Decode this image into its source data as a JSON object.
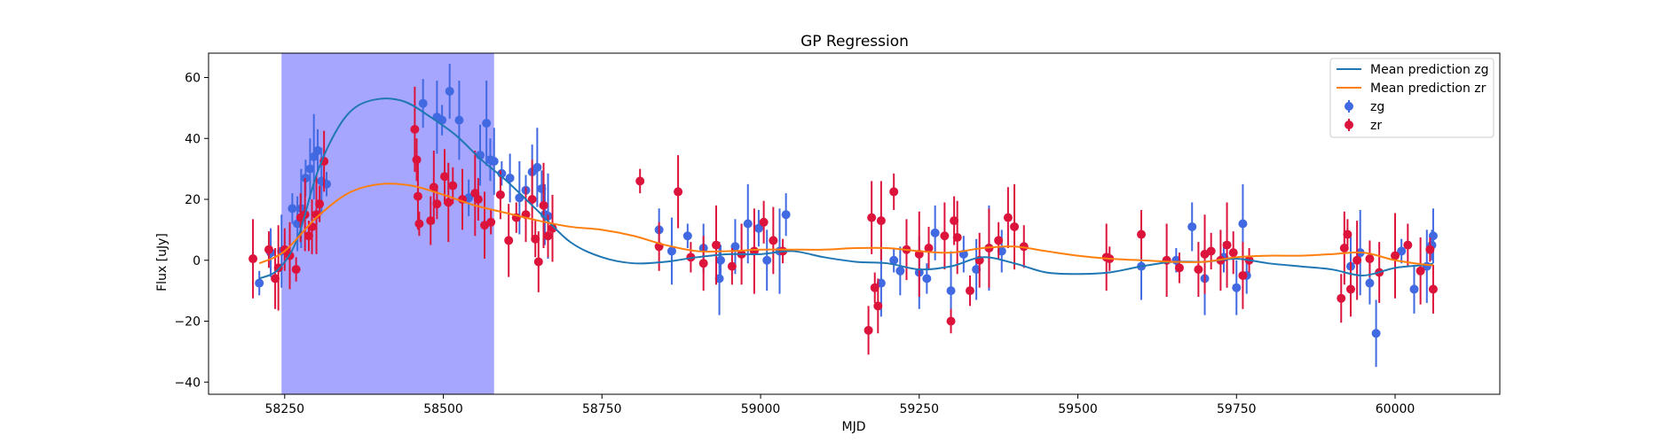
{
  "chart_data": {
    "type": "scatter",
    "title": "GP Regression",
    "xlabel": "MJD",
    "ylabel": "Flux [uJy]",
    "xlim": [
      58130,
      60165
    ],
    "ylim": [
      -44,
      68
    ],
    "xticks": [
      58250,
      58500,
      58750,
      59000,
      59250,
      59500,
      59750,
      60000
    ],
    "yticks": [
      -40,
      -20,
      0,
      20,
      40,
      60
    ],
    "grid": false,
    "legend_position": "top-right",
    "highlight_span": {
      "x_start": 58245,
      "x_end": 58580,
      "color": "#a6a6ff"
    },
    "colors": {
      "zg_line": "#1f77b4",
      "zr_line": "#ff7f0e",
      "zg_points": "#4169e1",
      "zr_points": "#dc143c"
    },
    "lines": [
      {
        "name": "Mean prediction zg",
        "color": "#1f77b4",
        "x": [
          58210,
          58240,
          58270,
          58300,
          58330,
          58360,
          58400,
          58440,
          58480,
          58520,
          58560,
          58600,
          58650,
          58700,
          58750,
          58800,
          58850,
          58900,
          58950,
          59000,
          59050,
          59100,
          59150,
          59200,
          59250,
          59300,
          59350,
          59400,
          59450,
          59500,
          59550,
          59600,
          59650,
          59700,
          59750,
          59800,
          59850,
          59900,
          59950,
          60000,
          60050,
          60060
        ],
        "y": [
          -6,
          -3,
          7,
          28,
          42,
          50,
          53,
          52,
          47,
          41,
          33,
          26,
          16,
          6,
          1,
          -1,
          -0.5,
          1,
          2,
          2,
          3,
          1,
          -0.5,
          -1,
          -3,
          -2,
          1,
          -1,
          -4,
          -4.5,
          -4,
          -2,
          -0.5,
          -0.5,
          0.5,
          -1,
          -2,
          -3,
          -5,
          -2.5,
          -1.5,
          -1
        ]
      },
      {
        "name": "Mean prediction zr",
        "color": "#ff7f0e",
        "x": [
          58210,
          58250,
          58300,
          58350,
          58400,
          58450,
          58500,
          58550,
          58600,
          58650,
          58700,
          58750,
          58800,
          58850,
          58900,
          58950,
          59000,
          59050,
          59100,
          59150,
          59200,
          59250,
          59300,
          59350,
          59400,
          59450,
          59500,
          59550,
          59600,
          59650,
          59700,
          59750,
          59800,
          59850,
          59900,
          59950,
          60000,
          60050,
          60060
        ],
        "y": [
          -1,
          3,
          14,
          22,
          25,
          24.5,
          21.5,
          18,
          15.5,
          13,
          11,
          10,
          8,
          5,
          3,
          3,
          3.5,
          3.5,
          3.5,
          4,
          4,
          3,
          2.5,
          4,
          4.5,
          3,
          1.5,
          0.5,
          0,
          -0.5,
          -0.5,
          1,
          1.5,
          1.5,
          2,
          2.5,
          0,
          -1.5,
          -1.5
        ]
      }
    ],
    "series": [
      {
        "name": "zg",
        "color": "#4169e1",
        "marker": "circle",
        "x": [
          58210,
          58228,
          58245,
          58262,
          58270,
          58276,
          58283,
          58290,
          58296,
          58302,
          58308,
          58316,
          58468,
          58490,
          58498,
          58510,
          58525,
          58540,
          58558,
          58568,
          58574,
          58580,
          58592,
          58605,
          58620,
          58630,
          58640,
          58648,
          58655,
          58660,
          58665,
          58840,
          58860,
          58885,
          58910,
          58935,
          58937,
          58960,
          58980,
          58997,
          59010,
          59030,
          59040,
          59190,
          59210,
          59220,
          59250,
          59262,
          59275,
          59300,
          59320,
          59340,
          59360,
          59380,
          59600,
          59655,
          59680,
          59700,
          59730,
          59750,
          59760,
          59766,
          59930,
          59945,
          59960,
          59970,
          60010,
          60030,
          60050,
          60058,
          60060
        ],
        "y": [
          -7.5,
          2.5,
          3,
          17,
          12,
          17,
          27,
          30,
          34,
          36,
          26,
          25,
          51.5,
          47,
          46,
          55.5,
          46,
          20.5,
          34.5,
          45,
          33,
          32.5,
          28.5,
          27,
          20.5,
          23,
          29,
          30.5,
          23.5,
          15,
          14.5,
          10,
          3,
          8,
          4,
          -6,
          0,
          4.5,
          12,
          10.5,
          0,
          3,
          15,
          -7.5,
          0,
          -3.5,
          -4,
          -6,
          9,
          -10,
          2,
          -3,
          4,
          3,
          -2,
          0,
          11,
          -6,
          1,
          -9,
          12,
          -5,
          -2,
          2.5,
          -7.5,
          -24,
          3,
          -9.5,
          -2,
          5,
          8
        ]
      },
      {
        "name": "zr",
        "color": "#dc143c",
        "marker": "circle",
        "x": [
          58200,
          58225,
          58235,
          58240,
          58250,
          58258,
          58268,
          58275,
          58282,
          58288,
          58293,
          58300,
          58305,
          58312,
          58455,
          58458,
          58460,
          58462,
          58480,
          58485,
          58490,
          58502,
          58508,
          58515,
          58530,
          58550,
          58555,
          58565,
          58575,
          58590,
          58603,
          58615,
          58630,
          58640,
          58645,
          58650,
          58658,
          58665,
          58672,
          58810,
          58840,
          58870,
          58890,
          58910,
          58930,
          58955,
          58970,
          58990,
          59005,
          59020,
          59035,
          59170,
          59175,
          59180,
          59185,
          59190,
          59210,
          59230,
          59250,
          59265,
          59290,
          59300,
          59305,
          59310,
          59330,
          59345,
          59360,
          59375,
          59390,
          59400,
          59415,
          59545,
          59550,
          59600,
          59640,
          59660,
          59690,
          59700,
          59710,
          59725,
          59735,
          59745,
          59760,
          59770,
          59915,
          59920,
          59925,
          59930,
          59940,
          59960,
          59975,
          60000,
          60020,
          60040,
          60055,
          60060
        ],
        "y": [
          0.5,
          3.5,
          -6,
          -2.5,
          3.5,
          1.5,
          -3,
          14,
          15,
          8,
          11,
          15,
          18.5,
          32.5,
          43,
          33,
          21,
          12,
          13,
          24,
          18.5,
          27.5,
          19,
          24.5,
          20,
          22,
          20,
          11.5,
          12.5,
          21.5,
          6.5,
          14,
          15,
          20,
          7,
          -0.5,
          18,
          8,
          10.5,
          26,
          4.5,
          22.5,
          1,
          -1,
          5,
          -2,
          2,
          3,
          12.5,
          6.5,
          3,
          -23,
          14,
          -9,
          -15,
          13,
          22.5,
          3.5,
          2,
          4,
          8,
          -20,
          13,
          7.5,
          -10,
          0,
          4,
          6.5,
          14,
          11,
          4.5,
          1,
          0.5,
          8.5,
          0,
          -2.5,
          -3,
          2,
          3,
          0,
          5,
          2.5,
          -5,
          0,
          -12.5,
          4,
          8.5,
          -9.5,
          0,
          0.5,
          -4,
          1.5,
          5,
          -3.5,
          3.5,
          -9.5
        ]
      }
    ]
  }
}
